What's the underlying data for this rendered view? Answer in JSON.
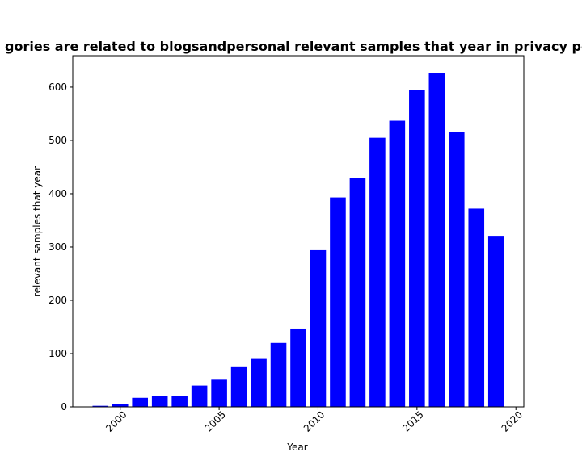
{
  "chart_data": {
    "type": "bar",
    "title": "gories are related to blogsandpersonal relevant samples that year in privacy po",
    "xlabel": "Year",
    "ylabel": "relevant samples that year",
    "x": [
      1999,
      2000,
      2001,
      2002,
      2003,
      2004,
      2005,
      2006,
      2007,
      2008,
      2009,
      2010,
      2011,
      2012,
      2013,
      2014,
      2015,
      2016,
      2017,
      2018,
      2019
    ],
    "values": [
      2,
      6,
      17,
      20,
      21,
      40,
      51,
      76,
      90,
      120,
      147,
      294,
      393,
      430,
      505,
      537,
      594,
      627,
      516,
      372,
      321
    ],
    "xlim": [
      1997.6,
      2020.4
    ],
    "ylim": [
      0,
      659
    ],
    "xticks": [
      2000,
      2005,
      2010,
      2015,
      2020
    ],
    "yticks": [
      0,
      100,
      200,
      300,
      400,
      500,
      600
    ],
    "bar_color": "#0000ff",
    "grid": false
  }
}
